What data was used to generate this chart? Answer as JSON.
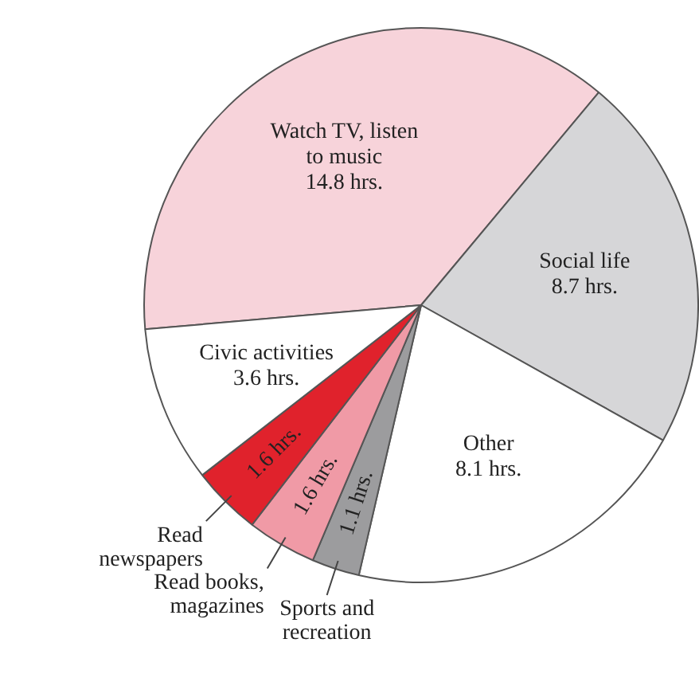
{
  "chart_data": {
    "type": "pie",
    "categories": [
      "Watch TV, listen to music",
      "Social life",
      "Other",
      "Sports and recreation",
      "Read books, magazines",
      "Read newspapers",
      "Civic activities"
    ],
    "values": [
      14.8,
      8.7,
      8.1,
      1.1,
      1.6,
      1.6,
      3.6
    ],
    "colors": [
      "#f7d3da",
      "#d6d6d8",
      "#ffffff",
      "#9c9c9e",
      "#f09aa6",
      "#e0222c",
      "#ffffff"
    ],
    "value_labels": [
      "14.8 hrs.",
      "8.7 hrs.",
      "8.1 hrs.",
      "1.1 hrs.",
      "1.6 hrs.",
      "1.6 hrs.",
      "3.6 hrs."
    ],
    "legend": false
  }
}
